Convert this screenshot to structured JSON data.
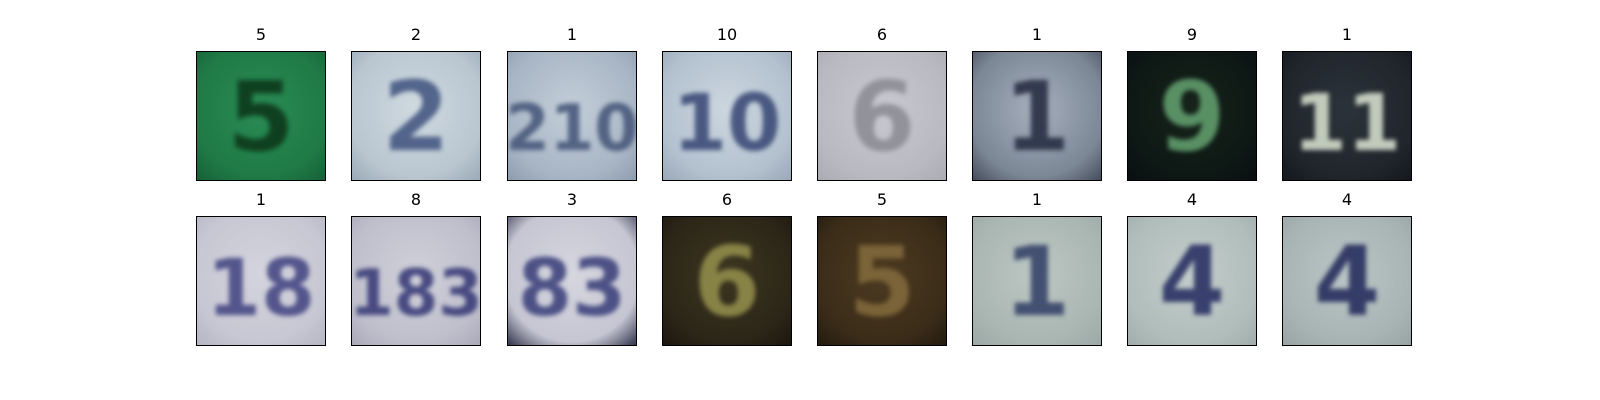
{
  "figure": {
    "panels": [
      {
        "label": "5",
        "glyph": "5",
        "bg": "#1f7a45",
        "bg2": "#2b8b55",
        "fg": "#0c3a1f",
        "edge": "#166038"
      },
      {
        "label": "2",
        "glyph": "2",
        "bg": "#b9c6d0",
        "bg2": "#cfd9e0",
        "fg": "#4a5c85",
        "edge": "#9aa9b6"
      },
      {
        "label": "1",
        "glyph": "210",
        "bg": "#a8b5c4",
        "bg2": "#c3ced9",
        "fg": "#4b5b7e",
        "edge": "#8d9cae"
      },
      {
        "label": "10",
        "glyph": "10",
        "bg": "#b3c1cf",
        "bg2": "#ccd6df",
        "fg": "#3f507a",
        "edge": "#9aa7b6"
      },
      {
        "label": "6",
        "glyph": "6",
        "bg": "#b9b9c1",
        "bg2": "#c8c8cf",
        "fg": "#8e8e95",
        "edge": "#aaaab2"
      },
      {
        "label": "1",
        "glyph": "1",
        "bg": "#7c8796",
        "bg2": "#a6b0bd",
        "fg": "#2c3346",
        "edge": "#434b5a"
      },
      {
        "label": "9",
        "glyph": "9",
        "bg": "#0d1714",
        "bg2": "#17241c",
        "fg": "#5f9a6a",
        "edge": "#0a0f12"
      },
      {
        "label": "1",
        "glyph": "11",
        "bg": "#20252c",
        "bg2": "#2b333a",
        "fg": "#cfd9c8",
        "edge": "#14181c"
      },
      {
        "label": "1",
        "glyph": "18",
        "bg": "#c7c7d3",
        "bg2": "#d4d4de",
        "fg": "#4a4c86",
        "edge": "#b5b5c3"
      },
      {
        "label": "8",
        "glyph": "183",
        "bg": "#bfbfcc",
        "bg2": "#d0d0da",
        "fg": "#3c3f7a",
        "edge": "#a9a9b9"
      },
      {
        "label": "3",
        "glyph": "83",
        "bg": "#c6c6d3",
        "bg2": "#d6d6df",
        "fg": "#43477f",
        "edge": "#2b2f45"
      },
      {
        "label": "6",
        "glyph": "6",
        "bg": "#2c2618",
        "bg2": "#3d3520",
        "fg": "#8e8a4a",
        "edge": "#1b160e"
      },
      {
        "label": "5",
        "glyph": "5",
        "bg": "#3a2c18",
        "bg2": "#4d3b22",
        "fg": "#80683a",
        "edge": "#22190e"
      },
      {
        "label": "1",
        "glyph": "1",
        "bg": "#aab6b2",
        "bg2": "#bcc7c3",
        "fg": "#3b466c",
        "edge": "#9ba8a5"
      },
      {
        "label": "4",
        "glyph": "4",
        "bg": "#b0bdbb",
        "bg2": "#c3cdcb",
        "fg": "#2e3466",
        "edge": "#a0adab"
      },
      {
        "label": "4",
        "glyph": "4",
        "bg": "#a8b4b4",
        "bg2": "#bac5c5",
        "fg": "#2c3160",
        "edge": "#98a4a4"
      }
    ]
  }
}
